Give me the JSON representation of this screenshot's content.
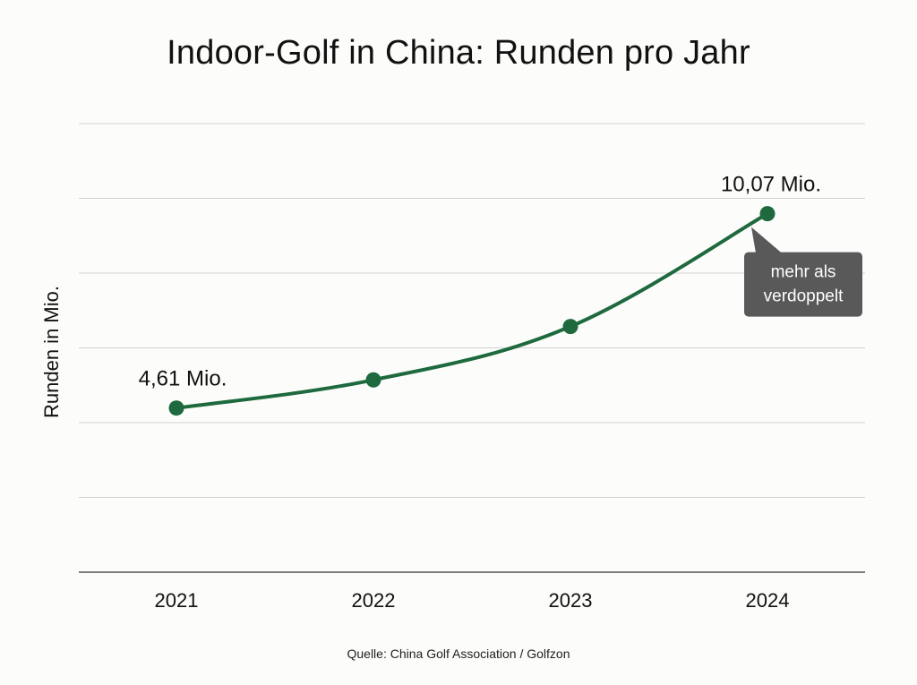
{
  "chart_data": {
    "type": "line",
    "title": "Indoor-Golf in China: Runden pro Jahr",
    "ylabel": "Runden in Mio.",
    "xlabel": "",
    "categories": [
      "2021",
      "2022",
      "2023",
      "2024"
    ],
    "series": [
      {
        "values": [
          4.61,
          5.4,
          6.9,
          10.07
        ],
        "color": "#1e6a3e"
      }
    ],
    "ylim": [
      0,
      12.6
    ],
    "grid": true,
    "data_labels": [
      {
        "index": 0,
        "text": "4,61 Mio."
      },
      {
        "index": 3,
        "text": "10,07 Mio."
      }
    ],
    "annotation": {
      "index": 3,
      "lines": [
        "mehr als",
        "verdoppelt"
      ]
    },
    "source": "Quelle: China Golf Association / Golfzon"
  }
}
